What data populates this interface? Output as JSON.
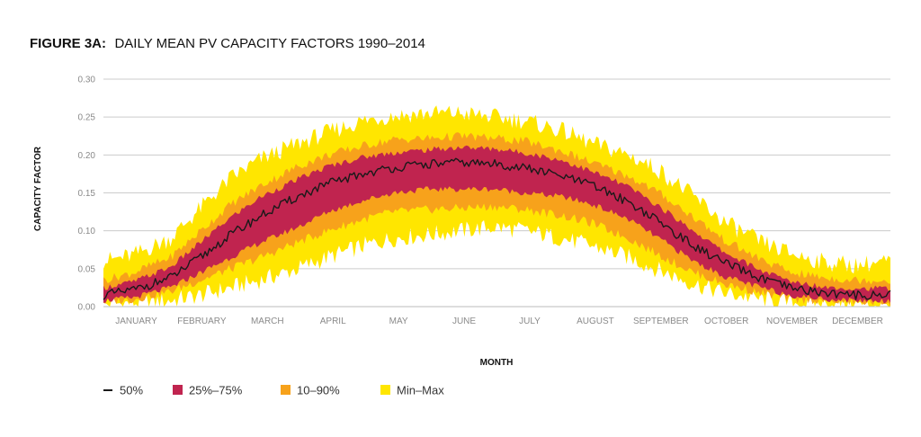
{
  "chart_data": {
    "type": "area",
    "title_prefix": "FIGURE 3A:",
    "title": "DAILY MEAN PV CAPACITY FACTORS 1990–2014",
    "xlabel": "MONTH",
    "ylabel": "CAPACITY FACTOR",
    "ylim": [
      0,
      0.3
    ],
    "yticks": [
      "0.00",
      "0.05",
      "0.10",
      "0.15",
      "0.20",
      "0.25",
      "0.30"
    ],
    "categories": [
      "JANUARY",
      "FEBRUARY",
      "MARCH",
      "APRIL",
      "MAY",
      "JUNE",
      "JULY",
      "AUGUST",
      "SEPTEMBER",
      "OCTOBER",
      "NOVEMBER",
      "DECEMBER"
    ],
    "grid": true,
    "legend_position": "bottom-left",
    "x_day_of_year": [
      1,
      15,
      32,
      46,
      60,
      74,
      91,
      105,
      121,
      135,
      152,
      166,
      182,
      196,
      213,
      227,
      244,
      258,
      274,
      288,
      305,
      319,
      335,
      349,
      365
    ],
    "series": [
      {
        "name": "Min–Max",
        "color": "#ffe600",
        "low": [
          0.003,
          0.005,
          0.008,
          0.015,
          0.025,
          0.035,
          0.05,
          0.065,
          0.08,
          0.09,
          0.095,
          0.1,
          0.105,
          0.1,
          0.09,
          0.08,
          0.065,
          0.048,
          0.03,
          0.018,
          0.01,
          0.005,
          0.003,
          0.002,
          0.003
        ],
        "high": [
          0.06,
          0.068,
          0.09,
          0.13,
          0.17,
          0.195,
          0.215,
          0.23,
          0.245,
          0.252,
          0.255,
          0.255,
          0.25,
          0.245,
          0.232,
          0.215,
          0.2,
          0.18,
          0.145,
          0.112,
          0.085,
          0.07,
          0.058,
          0.055,
          0.06
        ]
      },
      {
        "name": "10–90%",
        "color": "#f7a21b",
        "low": [
          0.006,
          0.01,
          0.02,
          0.035,
          0.05,
          0.065,
          0.085,
          0.1,
          0.115,
          0.125,
          0.128,
          0.13,
          0.132,
          0.128,
          0.12,
          0.11,
          0.09,
          0.068,
          0.045,
          0.03,
          0.018,
          0.01,
          0.008,
          0.006,
          0.006
        ],
        "high": [
          0.035,
          0.045,
          0.065,
          0.1,
          0.135,
          0.16,
          0.185,
          0.2,
          0.212,
          0.22,
          0.222,
          0.225,
          0.222,
          0.218,
          0.205,
          0.19,
          0.172,
          0.15,
          0.118,
          0.088,
          0.062,
          0.045,
          0.038,
          0.035,
          0.035
        ]
      },
      {
        "name": "25%–75%",
        "color": "#c0244f",
        "low": [
          0.008,
          0.012,
          0.025,
          0.045,
          0.065,
          0.085,
          0.105,
          0.125,
          0.14,
          0.15,
          0.155,
          0.155,
          0.155,
          0.15,
          0.145,
          0.135,
          0.115,
          0.09,
          0.06,
          0.04,
          0.025,
          0.015,
          0.01,
          0.008,
          0.008
        ],
        "high": [
          0.025,
          0.033,
          0.052,
          0.085,
          0.118,
          0.145,
          0.168,
          0.185,
          0.197,
          0.203,
          0.207,
          0.21,
          0.208,
          0.203,
          0.193,
          0.178,
          0.158,
          0.132,
          0.1,
          0.072,
          0.048,
          0.033,
          0.026,
          0.024,
          0.024
        ]
      }
    ],
    "median": {
      "name": "50%",
      "color": "#1a1a1a",
      "values": [
        0.015,
        0.022,
        0.038,
        0.065,
        0.095,
        0.12,
        0.145,
        0.162,
        0.175,
        0.183,
        0.188,
        0.19,
        0.188,
        0.183,
        0.172,
        0.16,
        0.138,
        0.112,
        0.08,
        0.058,
        0.037,
        0.024,
        0.018,
        0.015,
        0.016
      ]
    },
    "legend": [
      {
        "label": "50%",
        "color": "#1a1a1a",
        "kind": "line"
      },
      {
        "label": "25%–75%",
        "color": "#c0244f",
        "kind": "square"
      },
      {
        "label": "10–90%",
        "color": "#f7a21b",
        "kind": "square"
      },
      {
        "label": "Min–Max",
        "color": "#ffe600",
        "kind": "square"
      }
    ]
  }
}
